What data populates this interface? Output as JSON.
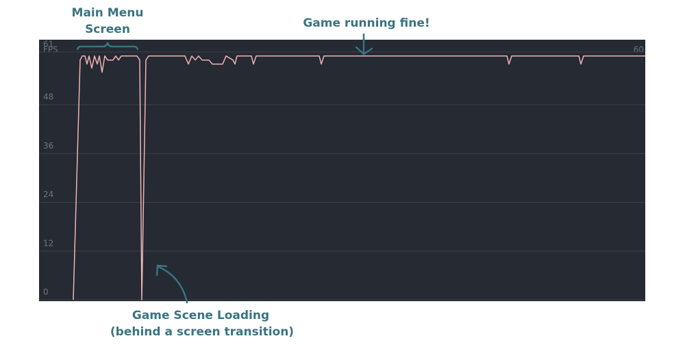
{
  "chart_data": {
    "type": "line",
    "y_label": "FPS",
    "current_value": 60,
    "color": "#f0b4b4",
    "xlim": [
      0,
      885
    ],
    "ylim": [
      0,
      64
    ],
    "yticks": [
      0,
      12,
      24,
      36,
      48,
      61
    ],
    "grid": true,
    "x": [
      50,
      60,
      63,
      67,
      70,
      73,
      77,
      81,
      85,
      88,
      92,
      96,
      100,
      104,
      108,
      112,
      116,
      120,
      127,
      135,
      143,
      147,
      150,
      156,
      160,
      213,
      218,
      223,
      228,
      233,
      238,
      248,
      253,
      268,
      273,
      283,
      286,
      289,
      310,
      313,
      317,
      409,
      412,
      416,
      683,
      686,
      690,
      788,
      791,
      795,
      885
    ],
    "values": [
      0,
      59,
      60,
      60,
      58,
      60,
      57,
      60,
      58,
      60,
      56,
      60,
      59,
      59,
      59,
      60,
      59,
      60,
      60,
      60,
      60,
      59,
      0,
      59,
      60,
      60,
      58,
      60,
      59,
      60,
      59,
      59,
      58,
      58,
      60,
      59,
      58,
      60,
      60,
      58,
      60,
      60,
      58,
      60,
      60,
      58,
      60,
      60,
      58,
      60,
      60
    ],
    "annotations": [
      "Main Menu",
      "Screen",
      "Game running fine!",
      "Game Scene Loading",
      "(behind a screen transition)"
    ]
  }
}
